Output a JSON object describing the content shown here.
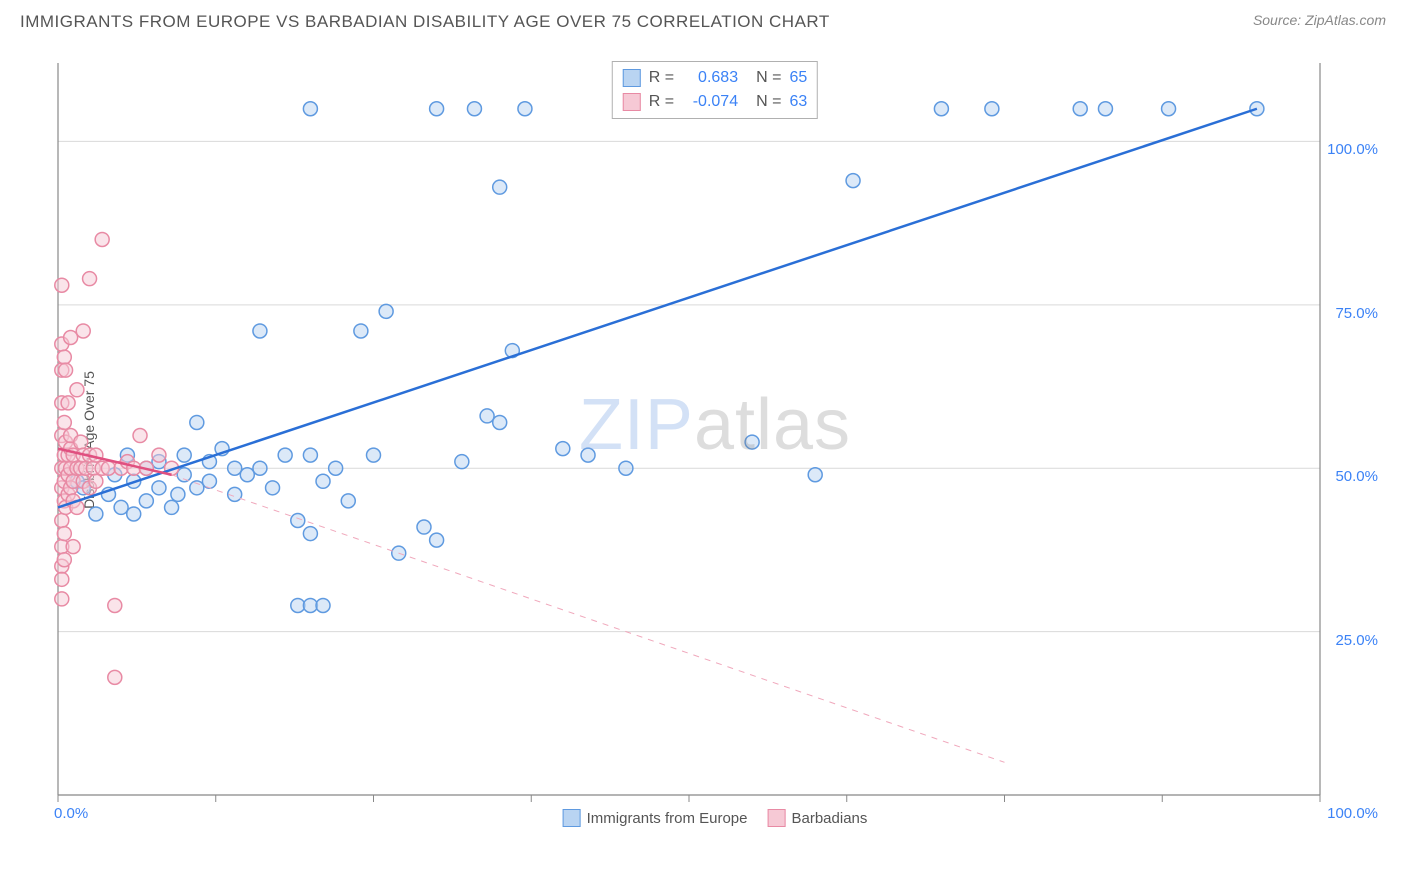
{
  "title": "IMMIGRANTS FROM EUROPE VS BARBADIAN DISABILITY AGE OVER 75 CORRELATION CHART",
  "source": "Source: ZipAtlas.com",
  "y_label": "Disability Age Over 75",
  "watermark": {
    "part1": "ZIP",
    "part2": "atlas"
  },
  "chart": {
    "type": "scatter",
    "xlim": [
      0,
      100
    ],
    "ylim": [
      0,
      112
    ],
    "x_ticks": [
      0,
      12.5,
      25,
      37.5,
      50,
      62.5,
      75,
      87.5,
      100
    ],
    "x_tick_labels": {
      "0": "0.0%",
      "100": "100.0%"
    },
    "y_ticks": [
      25,
      50,
      75,
      100
    ],
    "y_tick_labels": {
      "25": "25.0%",
      "50": "50.0%",
      "75": "75.0%",
      "100": "100.0%"
    },
    "grid_color": "#d9d9d9",
    "axis_color": "#888888",
    "background": "#ffffff",
    "tick_label_color": "#3b82f6",
    "marker_radius": 7,
    "marker_stroke_width": 1.5,
    "line_width_solid": 2.5,
    "line_width_dashed": 1,
    "series": [
      {
        "name": "Immigrants from Europe",
        "color_fill": "#b9d4f2",
        "color_stroke": "#5f9ae0",
        "fill_opacity": 0.5,
        "points": [
          [
            1.5,
            48
          ],
          [
            2,
            47
          ],
          [
            3,
            43
          ],
          [
            4,
            46
          ],
          [
            4.5,
            49
          ],
          [
            5,
            44
          ],
          [
            5.5,
            52
          ],
          [
            6,
            43
          ],
          [
            6,
            48
          ],
          [
            7,
            45
          ],
          [
            7,
            50
          ],
          [
            8,
            47
          ],
          [
            8,
            51
          ],
          [
            9,
            44
          ],
          [
            9.5,
            46
          ],
          [
            10,
            49
          ],
          [
            10,
            52
          ],
          [
            11,
            47
          ],
          [
            11,
            57
          ],
          [
            12,
            48
          ],
          [
            12,
            51
          ],
          [
            13,
            53
          ],
          [
            14,
            46
          ],
          [
            14,
            50
          ],
          [
            15,
            49
          ],
          [
            16,
            50
          ],
          [
            16,
            71
          ],
          [
            17,
            47
          ],
          [
            18,
            52
          ],
          [
            19,
            42
          ],
          [
            20,
            40
          ],
          [
            20,
            52
          ],
          [
            20,
            105
          ],
          [
            21,
            48
          ],
          [
            22,
            50
          ],
          [
            23,
            45
          ],
          [
            24,
            71
          ],
          [
            25,
            52
          ],
          [
            26,
            74
          ],
          [
            27,
            37
          ],
          [
            19,
            29
          ],
          [
            20,
            29
          ],
          [
            21,
            29
          ],
          [
            29,
            41
          ],
          [
            30,
            39
          ],
          [
            30,
            105
          ],
          [
            32,
            51
          ],
          [
            33,
            105
          ],
          [
            34,
            58
          ],
          [
            35,
            93
          ],
          [
            35,
            57
          ],
          [
            36,
            68
          ],
          [
            37,
            105
          ],
          [
            40,
            53
          ],
          [
            42,
            52
          ],
          [
            45,
            50
          ],
          [
            55,
            54
          ],
          [
            60,
            49
          ],
          [
            63,
            94
          ],
          [
            70,
            105
          ],
          [
            74,
            105
          ],
          [
            81,
            105
          ],
          [
            83,
            105
          ],
          [
            88,
            105
          ],
          [
            95,
            105
          ]
        ],
        "trend": {
          "x1": 0,
          "y1": 44,
          "x2": 95,
          "y2": 105,
          "dashed": false,
          "color": "#2a6fd6"
        },
        "trend_extrap": {
          "x1": 0,
          "y1": 44,
          "x2": 0,
          "y2": 44
        }
      },
      {
        "name": "Barbadians",
        "color_fill": "#f6c9d5",
        "color_stroke": "#e88aa4",
        "fill_opacity": 0.5,
        "points": [
          [
            0.3,
            50
          ],
          [
            0.3,
            47
          ],
          [
            0.3,
            55
          ],
          [
            0.3,
            42
          ],
          [
            0.3,
            60
          ],
          [
            0.3,
            38
          ],
          [
            0.3,
            65
          ],
          [
            0.3,
            35
          ],
          [
            0.5,
            48
          ],
          [
            0.5,
            52
          ],
          [
            0.5,
            45
          ],
          [
            0.5,
            57
          ],
          [
            0.6,
            50
          ],
          [
            0.6,
            44
          ],
          [
            0.6,
            54
          ],
          [
            0.8,
            49
          ],
          [
            0.8,
            52
          ],
          [
            0.8,
            46
          ],
          [
            0.8,
            60
          ],
          [
            1.0,
            50
          ],
          [
            1.0,
            47
          ],
          [
            1.0,
            53
          ],
          [
            1.0,
            55
          ],
          [
            1.2,
            48
          ],
          [
            1.2,
            52
          ],
          [
            1.2,
            45
          ],
          [
            1.2,
            38
          ],
          [
            1.5,
            50
          ],
          [
            1.5,
            62
          ],
          [
            1.5,
            44
          ],
          [
            1.8,
            50
          ],
          [
            1.8,
            54
          ],
          [
            2.0,
            48
          ],
          [
            2.0,
            52
          ],
          [
            2.0,
            71
          ],
          [
            2.2,
            50
          ],
          [
            2.5,
            52
          ],
          [
            2.5,
            47
          ],
          [
            2.5,
            79
          ],
          [
            0.3,
            33
          ],
          [
            0.5,
            36
          ],
          [
            0.5,
            40
          ],
          [
            2.8,
            50
          ],
          [
            3.0,
            52
          ],
          [
            3.0,
            48
          ],
          [
            3.5,
            50
          ],
          [
            3.5,
            85
          ],
          [
            0.3,
            69
          ],
          [
            0.5,
            67
          ],
          [
            0.6,
            65
          ],
          [
            4.0,
            50
          ],
          [
            4.5,
            18
          ],
          [
            5.0,
            50
          ],
          [
            5.5,
            51
          ],
          [
            6.0,
            50
          ],
          [
            0.3,
            78
          ],
          [
            1.0,
            70
          ],
          [
            6.5,
            55
          ],
          [
            7.0,
            50
          ],
          [
            8.0,
            52
          ],
          [
            9.0,
            50
          ],
          [
            4.5,
            29
          ],
          [
            0.3,
            30
          ]
        ],
        "trend": {
          "x1": 0,
          "y1": 53,
          "x2": 9,
          "y2": 49,
          "dashed": false,
          "color": "#e05080"
        },
        "trend_extrap": {
          "x1": 9,
          "y1": 49,
          "x2": 75,
          "y2": 5,
          "dashed": true,
          "color": "#f0a8bc"
        }
      }
    ]
  },
  "stats": [
    {
      "swatch_fill": "#b9d4f2",
      "swatch_stroke": "#5f9ae0",
      "R_label": "R =",
      "R": "0.683",
      "N_label": "N =",
      "N": "65"
    },
    {
      "swatch_fill": "#f6c9d5",
      "swatch_stroke": "#e88aa4",
      "R_label": "R =",
      "R": "-0.074",
      "N_label": "N =",
      "N": "63"
    }
  ],
  "bottom_legend": [
    {
      "swatch_fill": "#b9d4f2",
      "swatch_stroke": "#5f9ae0",
      "label": "Immigrants from Europe"
    },
    {
      "swatch_fill": "#f6c9d5",
      "swatch_stroke": "#e88aa4",
      "label": "Barbadians"
    }
  ]
}
